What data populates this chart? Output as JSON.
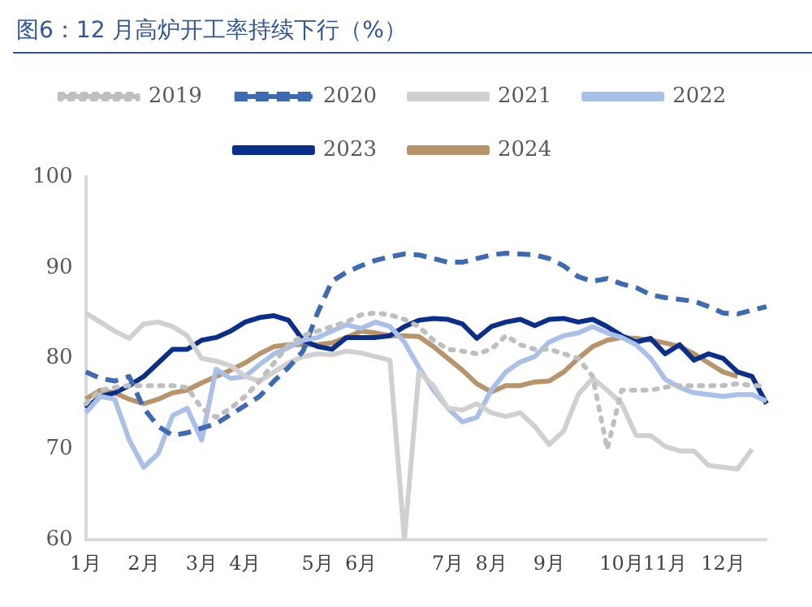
{
  "chart_data": {
    "type": "line",
    "title": "图6：12 月高炉开工率持续下行（%）",
    "categories": [
      "1月",
      null,
      null,
      null,
      "2月",
      null,
      null,
      null,
      "3月",
      null,
      null,
      "4月",
      null,
      null,
      null,
      null,
      "5月",
      null,
      null,
      "6月",
      null,
      null,
      null,
      null,
      null,
      "7月",
      null,
      null,
      "8月",
      null,
      null,
      null,
      "9月",
      null,
      null,
      null,
      null,
      "10月",
      null,
      null,
      "11月",
      null,
      null,
      null,
      "12月",
      null,
      null,
      null
    ],
    "series": [
      {
        "name": "2019",
        "color": "#bfbfbf",
        "line_style": "dotted",
        "values": [
          75,
          76.5,
          76.8,
          77,
          77,
          77,
          77,
          76.8,
          74.5,
          73.5,
          74.5,
          75.8,
          77.5,
          79.5,
          81.5,
          82.5,
          83,
          83.5,
          84,
          84.8,
          85,
          84.8,
          84.3,
          83.5,
          82,
          81,
          80.8,
          80.5,
          81,
          82.5,
          81.5,
          81,
          81,
          80.5,
          80,
          78,
          70,
          76.5,
          76.5,
          76.5,
          76.8,
          77,
          77,
          77,
          77,
          77.2,
          77,
          77
        ]
      },
      {
        "name": "2020",
        "color": "#3d6bb3",
        "line_style": "dashed",
        "values": [
          78.5,
          77.8,
          77.5,
          78,
          74.5,
          72.5,
          71.5,
          71.8,
          72.3,
          72.8,
          73.8,
          74.8,
          75.8,
          77.5,
          79,
          80.8,
          85,
          88.5,
          89.5,
          90.2,
          90.8,
          91.2,
          91.5,
          91.4,
          91,
          90.6,
          90.6,
          91,
          91.4,
          91.6,
          91.5,
          91.4,
          91,
          90.2,
          89,
          88.5,
          88.8,
          88.2,
          87.8,
          87,
          86.7,
          86.5,
          86.3,
          85.7,
          85,
          84.9,
          85.3,
          85.7
        ]
      },
      {
        "name": "2021",
        "color": "#d0d0d0",
        "line_style": "solid",
        "values": [
          85,
          84,
          83,
          82.2,
          83.8,
          84,
          83.5,
          82.5,
          80,
          79.7,
          79.2,
          78,
          77.5,
          78.5,
          79.5,
          80.2,
          80.5,
          80.4,
          80.8,
          80.6,
          80.2,
          79.8,
          60,
          78.5,
          77,
          74.5,
          74.3,
          75,
          74,
          73.6,
          74,
          72.5,
          70.5,
          72,
          76,
          77.8,
          76.5,
          75,
          71.5,
          71.5,
          70.3,
          69.8,
          69.8,
          68.2,
          68,
          67.8,
          70,
          null
        ]
      },
      {
        "name": "2022",
        "color": "#a9c0e8",
        "line_style": "solid",
        "values": [
          74,
          75.8,
          75.5,
          71,
          68,
          69.5,
          73.7,
          74.5,
          71,
          78.8,
          77.8,
          78,
          79.3,
          80.5,
          81.2,
          82,
          82.3,
          83,
          83.7,
          83.3,
          84,
          83.5,
          81.8,
          79,
          76.5,
          74.5,
          73,
          73.5,
          76.5,
          78.5,
          79.6,
          80.2,
          81.8,
          82.5,
          82.8,
          83.5,
          82.8,
          82.3,
          81.5,
          80,
          77.7,
          76.8,
          76.2,
          76,
          75.8,
          76,
          76,
          75.3
        ]
      },
      {
        "name": "2023",
        "color": "#0a2f8a",
        "line_style": "solid",
        "values": [
          74.5,
          75.8,
          76.2,
          77,
          78,
          79.5,
          81,
          81,
          82,
          82.3,
          83,
          84,
          84.5,
          84.7,
          84.2,
          82,
          81.3,
          81,
          82.3,
          82.3,
          82.3,
          82.5,
          83.5,
          84.2,
          84.4,
          84.3,
          83.8,
          82.2,
          83.5,
          84,
          84.3,
          83.6,
          84.3,
          84.4,
          84,
          84.3,
          83.5,
          82.5,
          81.8,
          82.2,
          80.5,
          81.5,
          79.8,
          80.5,
          80,
          78.5,
          78,
          75
        ]
      },
      {
        "name": "2024",
        "color": "#b8946a",
        "line_style": "solid",
        "values": [
          75.5,
          76.5,
          76.2,
          75.5,
          75,
          75.5,
          76.2,
          76.5,
          77.3,
          78,
          78.7,
          79.5,
          80.5,
          81.3,
          81.5,
          81.5,
          81.5,
          81.7,
          82.3,
          83,
          82.8,
          82.5,
          82.5,
          82.4,
          81.3,
          80,
          78.7,
          77.2,
          76.3,
          77,
          77,
          77.4,
          77.5,
          78.5,
          80,
          81.3,
          82,
          82.3,
          82.2,
          82,
          81.7,
          81.3,
          80.5,
          79.5,
          78.5,
          78,
          null,
          null
        ]
      }
    ],
    "ylim": [
      60,
      100
    ],
    "yticks": [
      60,
      70,
      80,
      90,
      100
    ],
    "grid": false,
    "legend": "top"
  }
}
